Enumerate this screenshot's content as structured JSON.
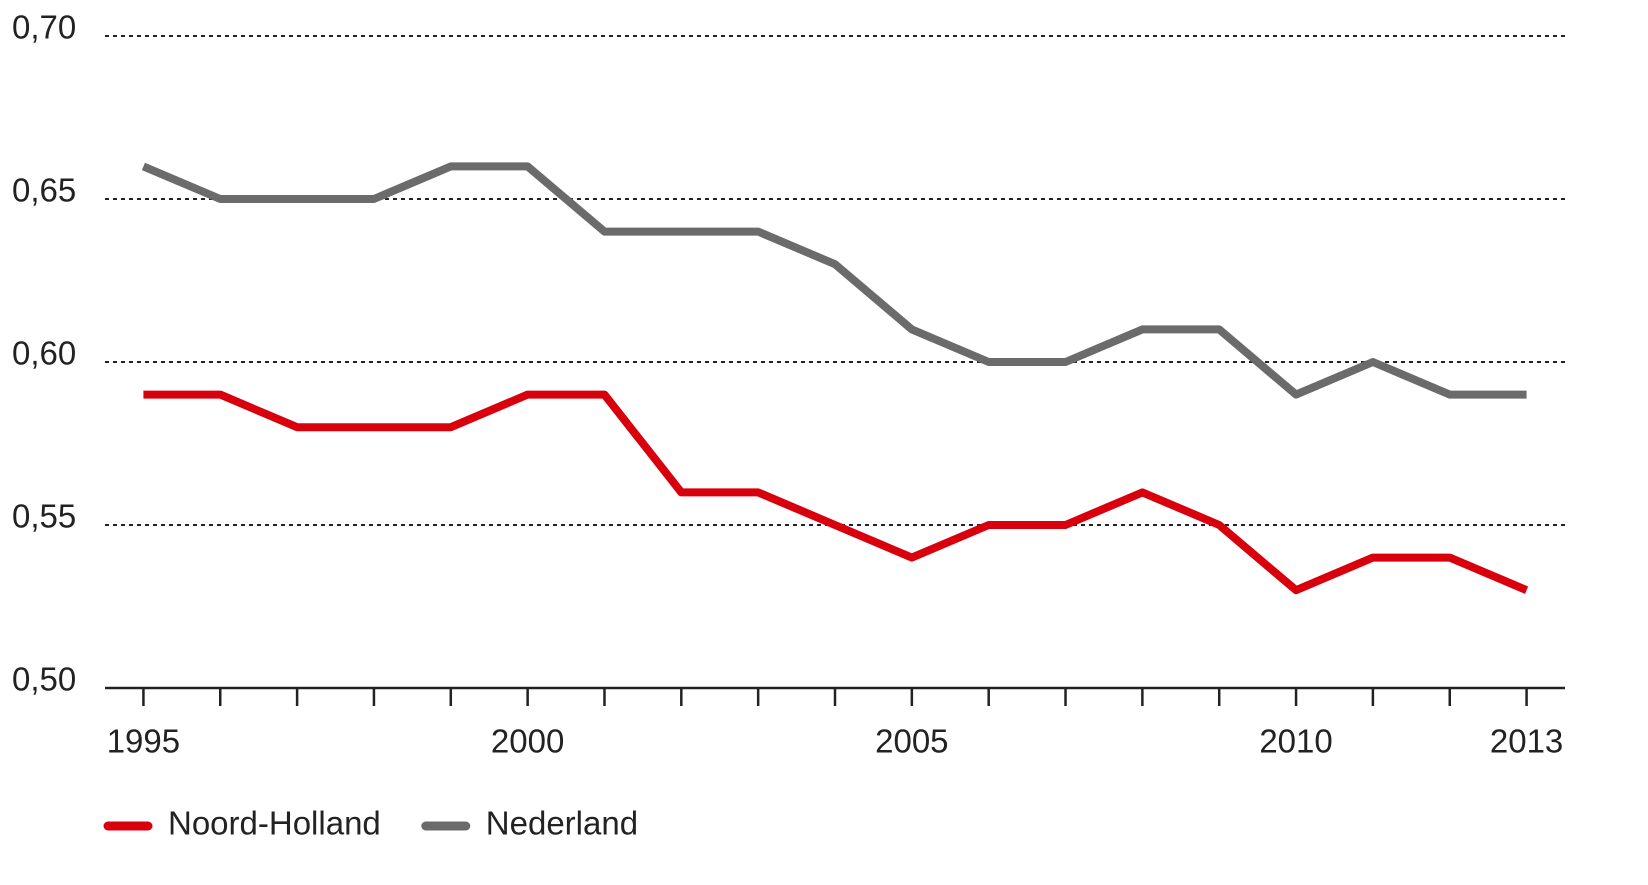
{
  "chart_data": {
    "type": "line",
    "x": [
      1995,
      1996,
      1997,
      1998,
      1999,
      2000,
      2001,
      2002,
      2003,
      2004,
      2005,
      2006,
      2007,
      2008,
      2009,
      2010,
      2011,
      2012,
      2013
    ],
    "series": [
      {
        "name": "Noord-Holland",
        "color": "#d9000d",
        "values": [
          0.59,
          0.59,
          0.58,
          0.58,
          0.58,
          0.59,
          0.59,
          0.56,
          0.56,
          0.55,
          0.54,
          0.55,
          0.55,
          0.56,
          0.55,
          0.53,
          0.54,
          0.54,
          0.53
        ]
      },
      {
        "name": "Nederland",
        "color": "#6b6b6b",
        "values": [
          0.66,
          0.65,
          0.65,
          0.65,
          0.66,
          0.66,
          0.64,
          0.64,
          0.64,
          0.63,
          0.61,
          0.6,
          0.6,
          0.61,
          0.61,
          0.59,
          0.6,
          0.59,
          0.59
        ]
      }
    ],
    "xlim": [
      1994.5,
      2013.5
    ],
    "xticks": [
      1995,
      2000,
      2005,
      2010,
      2013
    ],
    "ylim": [
      0.5,
      0.7
    ],
    "yticks": [
      {
        "value": 0.5,
        "label": "0,50"
      },
      {
        "value": 0.55,
        "label": "0,55"
      },
      {
        "value": 0.6,
        "label": "0,60"
      },
      {
        "value": 0.65,
        "label": "0,65"
      },
      {
        "value": 0.7,
        "label": "0,70"
      }
    ],
    "grid": true,
    "legend": "bottom"
  }
}
